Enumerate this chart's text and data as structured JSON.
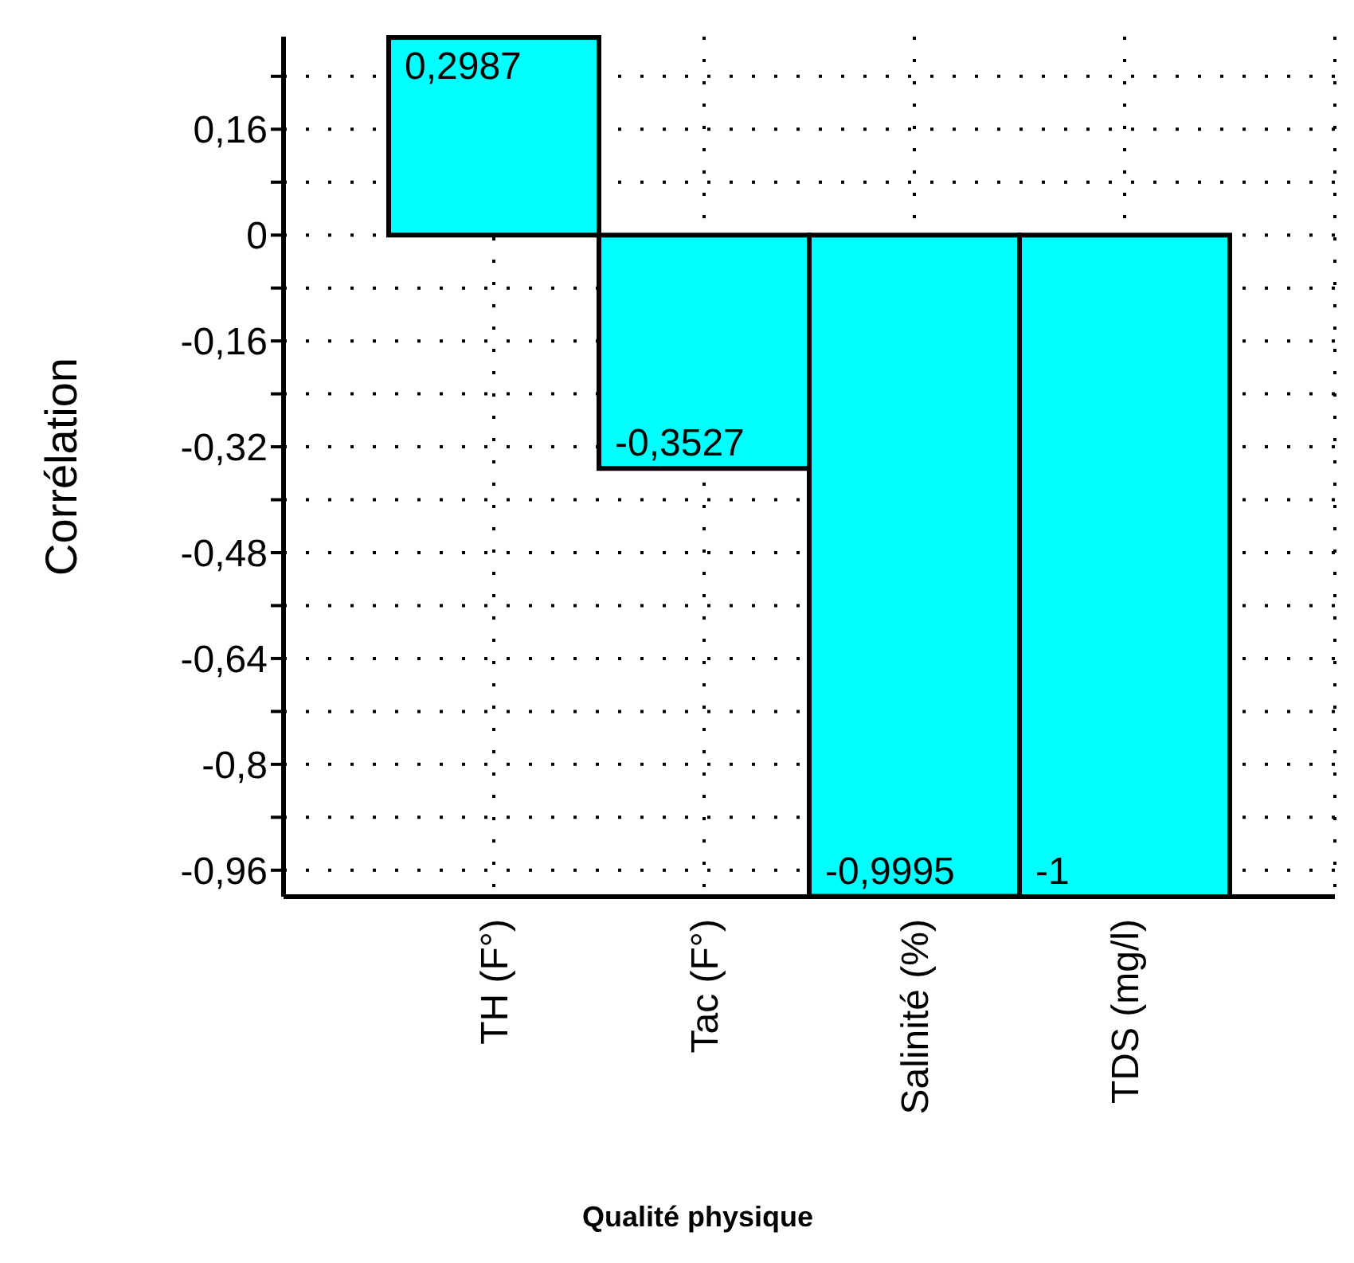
{
  "chart_data": {
    "type": "bar",
    "xlabel": "Qualité physique",
    "ylabel": "Corrélation",
    "categories": [
      "TH (F°)",
      "Tac (F°)",
      "Salinité (%)",
      "TDS (mg/l)"
    ],
    "values": [
      0.2987,
      -0.3527,
      -0.9995,
      -1
    ],
    "value_labels": [
      "0,2987",
      "-0,3527",
      "-0,9995",
      "-1"
    ],
    "color": "#00ffff",
    "ylim": [
      -1,
      0.3
    ],
    "yticks": [
      {
        "value": 0.24,
        "label": null
      },
      {
        "value": 0.16,
        "label": "0,16"
      },
      {
        "value": 0.08,
        "label": null
      },
      {
        "value": 0,
        "label": "0"
      },
      {
        "value": -0.08,
        "label": null
      },
      {
        "value": -0.16,
        "label": "-0,16"
      },
      {
        "value": -0.24,
        "label": null
      },
      {
        "value": -0.32,
        "label": "-0,32"
      },
      {
        "value": -0.4,
        "label": null
      },
      {
        "value": -0.48,
        "label": "-0,48"
      },
      {
        "value": -0.56,
        "label": null
      },
      {
        "value": -0.64,
        "label": "-0,64"
      },
      {
        "value": -0.72,
        "label": null
      },
      {
        "value": -0.8,
        "label": "-0,8"
      },
      {
        "value": -0.88,
        "label": null
      },
      {
        "value": -0.96,
        "label": "-0,96"
      }
    ],
    "grid": true
  }
}
